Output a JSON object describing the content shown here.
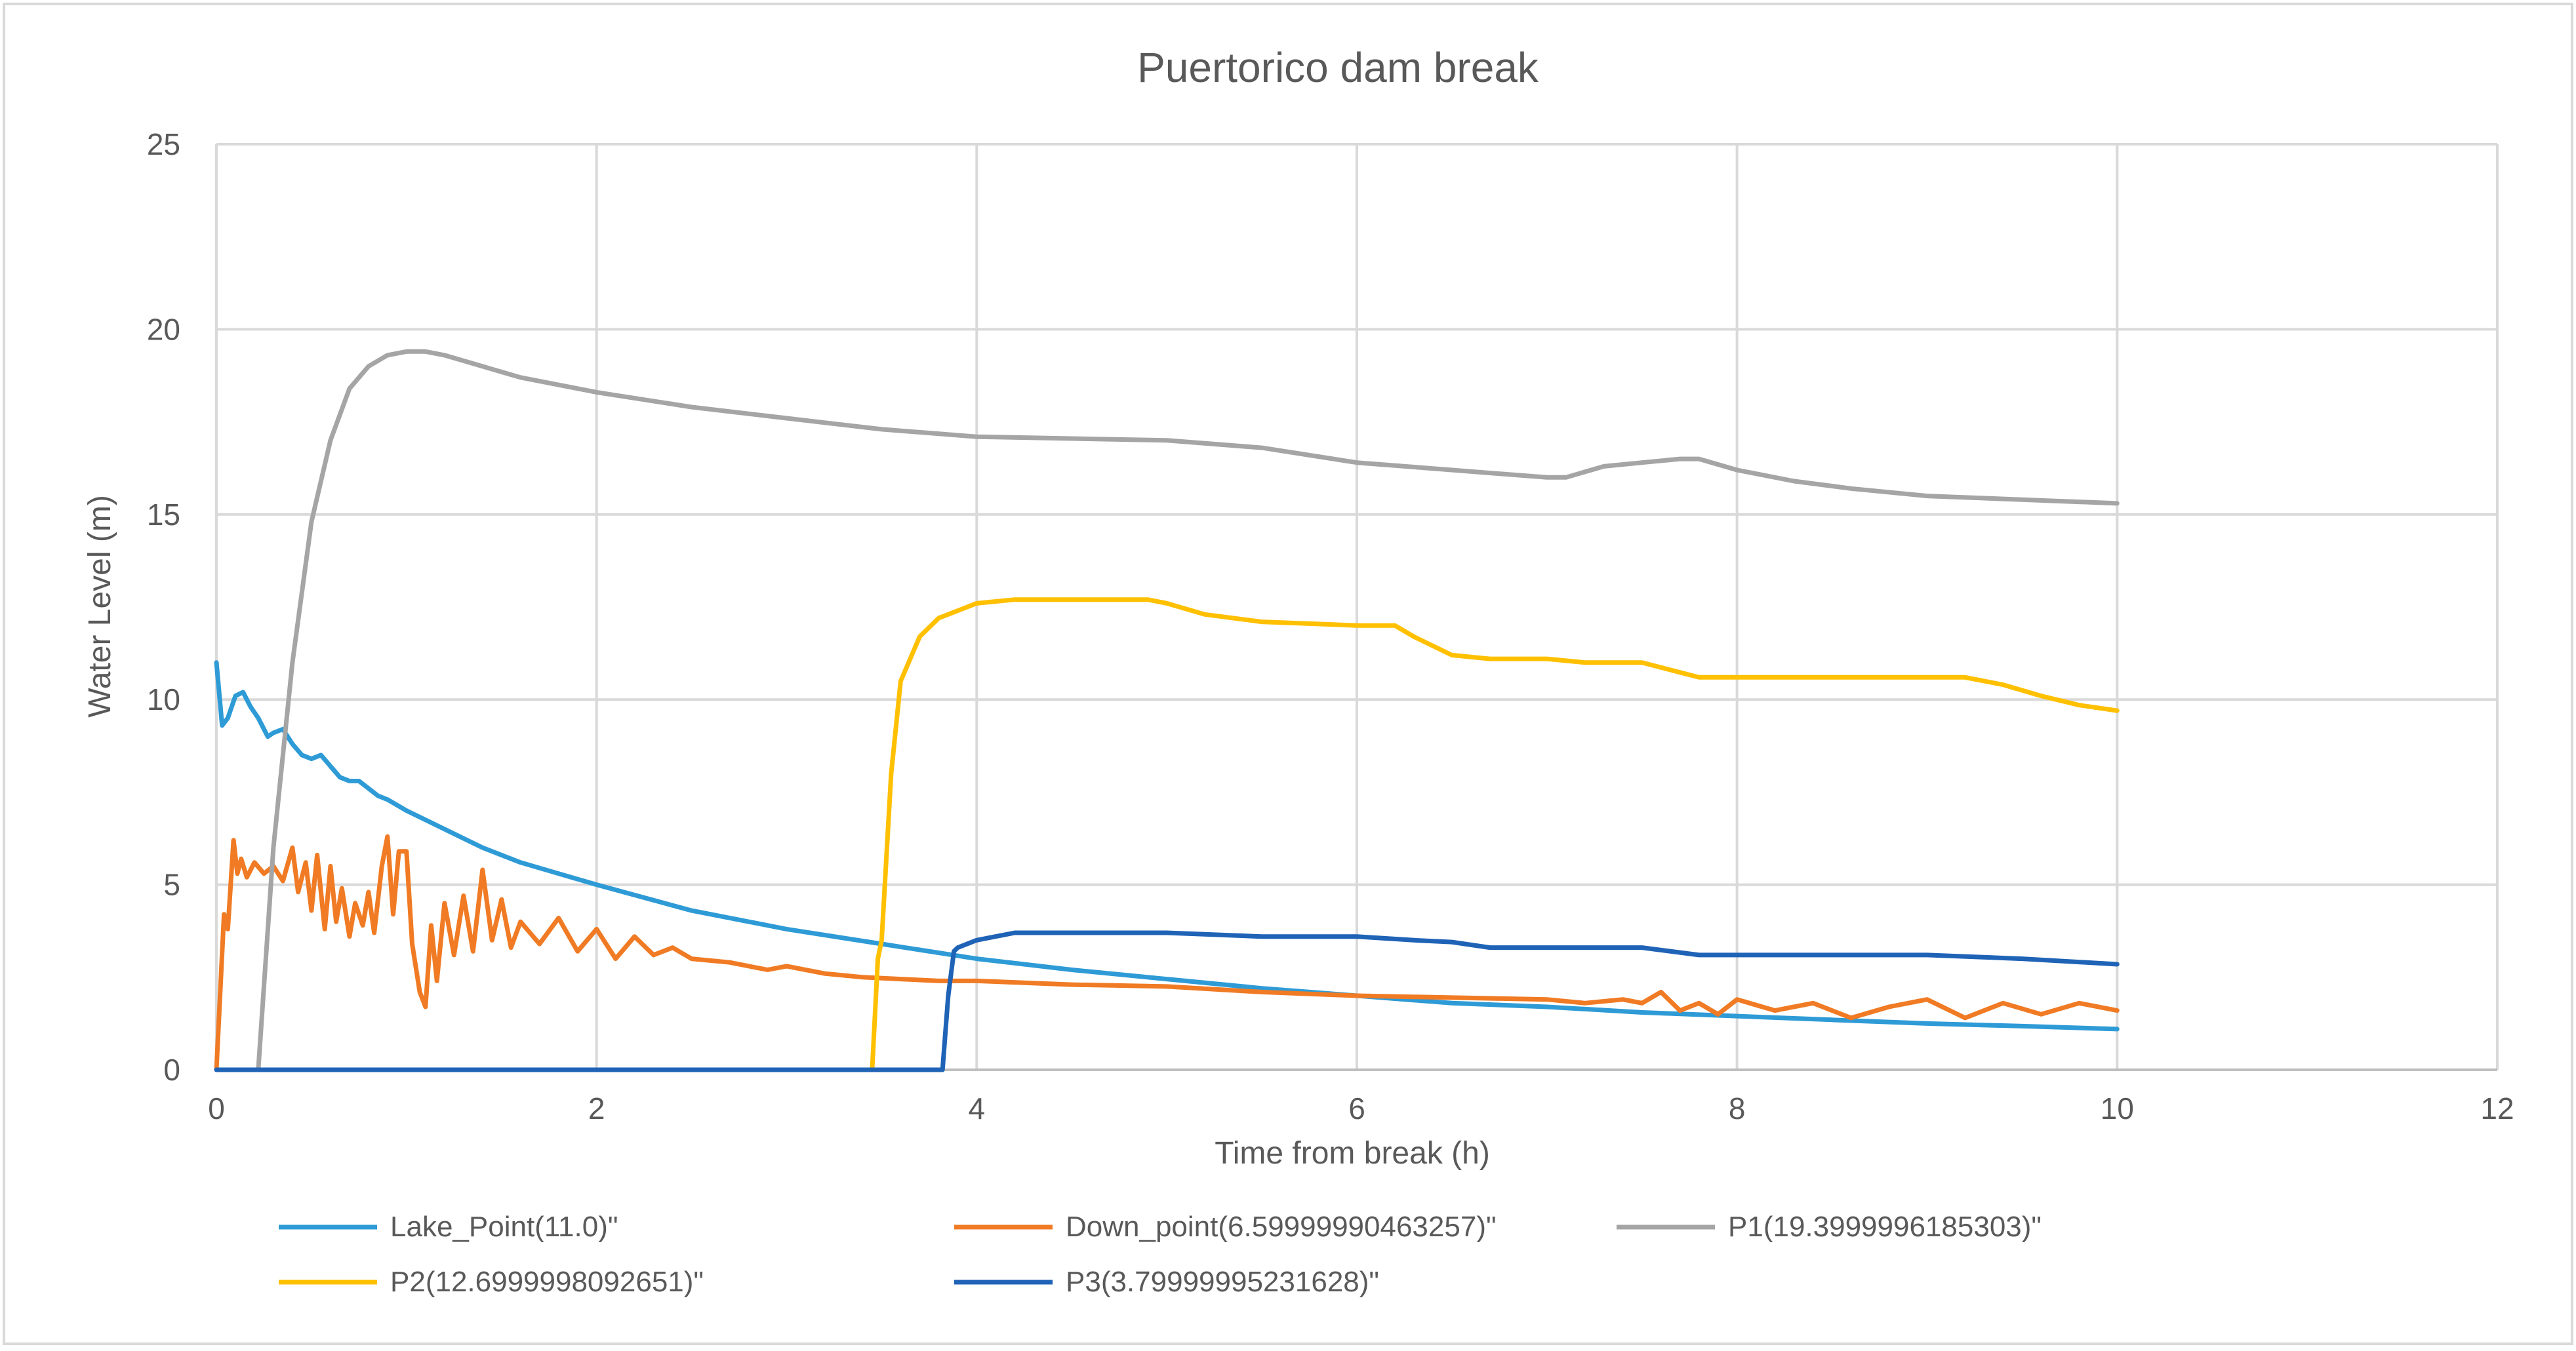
{
  "chart_data": {
    "type": "line",
    "title": "Puertorico dam break",
    "xlabel": "Time from break (h)",
    "ylabel": "Water Level (m)",
    "xlim": [
      0,
      12
    ],
    "ylim": [
      0,
      25
    ],
    "x_ticks": [
      "0",
      "2",
      "4",
      "6",
      "8",
      "10",
      "12"
    ],
    "y_ticks": [
      "0",
      "5",
      "10",
      "15",
      "20",
      "25"
    ],
    "grid": true,
    "legend_position": "bottom",
    "series": [
      {
        "name": "Lake_Point(11.0)\"",
        "color": "#2e9bd6",
        "x": [
          0,
          0.03,
          0.06,
          0.1,
          0.14,
          0.18,
          0.22,
          0.27,
          0.3,
          0.35,
          0.4,
          0.45,
          0.5,
          0.55,
          0.6,
          0.65,
          0.7,
          0.75,
          0.8,
          0.85,
          0.9,
          1.0,
          1.2,
          1.4,
          1.6,
          1.8,
          2.0,
          2.5,
          3.0,
          3.5,
          4.0,
          4.5,
          5.0,
          5.5,
          6.0,
          6.5,
          7.0,
          7.5,
          8.0,
          8.5,
          9.0,
          9.5,
          10.0
        ],
        "y": [
          11.0,
          9.3,
          9.5,
          10.1,
          10.2,
          9.8,
          9.5,
          9.0,
          9.1,
          9.2,
          8.8,
          8.5,
          8.4,
          8.5,
          8.2,
          7.9,
          7.8,
          7.8,
          7.6,
          7.4,
          7.3,
          7.0,
          6.5,
          6.0,
          5.6,
          5.3,
          5.0,
          4.3,
          3.8,
          3.4,
          3.0,
          2.7,
          2.45,
          2.2,
          2.0,
          1.8,
          1.7,
          1.55,
          1.45,
          1.35,
          1.25,
          1.18,
          1.1
        ]
      },
      {
        "name": "Down_point(6.59999990463257)\"",
        "color": "#f07b24",
        "x": [
          0,
          0.04,
          0.06,
          0.09,
          0.11,
          0.13,
          0.16,
          0.2,
          0.25,
          0.3,
          0.35,
          0.4,
          0.43,
          0.47,
          0.5,
          0.53,
          0.57,
          0.6,
          0.63,
          0.66,
          0.7,
          0.73,
          0.77,
          0.8,
          0.83,
          0.87,
          0.9,
          0.93,
          0.96,
          1.0,
          1.03,
          1.07,
          1.1,
          1.13,
          1.16,
          1.2,
          1.25,
          1.3,
          1.35,
          1.4,
          1.45,
          1.5,
          1.55,
          1.6,
          1.7,
          1.8,
          1.9,
          2.0,
          2.1,
          2.2,
          2.3,
          2.4,
          2.5,
          2.7,
          2.9,
          3.0,
          3.2,
          3.4,
          3.6,
          3.8,
          4.0,
          4.5,
          5.0,
          5.5,
          6.0,
          6.5,
          7.0,
          7.2,
          7.4,
          7.5,
          7.6,
          7.7,
          7.8,
          7.9,
          8.0,
          8.2,
          8.4,
          8.6,
          8.8,
          9.0,
          9.2,
          9.4,
          9.6,
          9.8,
          10.0
        ],
        "y": [
          0,
          4.2,
          3.8,
          6.2,
          5.3,
          5.7,
          5.2,
          5.6,
          5.3,
          5.5,
          5.1,
          6.0,
          4.8,
          5.6,
          4.3,
          5.8,
          3.8,
          5.5,
          4.0,
          4.9,
          3.6,
          4.5,
          3.9,
          4.8,
          3.7,
          5.5,
          6.3,
          4.2,
          5.9,
          5.9,
          3.4,
          2.1,
          1.7,
          3.9,
          2.4,
          4.5,
          3.1,
          4.7,
          3.2,
          5.4,
          3.5,
          4.6,
          3.3,
          4.0,
          3.4,
          4.1,
          3.2,
          3.8,
          3.0,
          3.6,
          3.1,
          3.3,
          3.0,
          2.9,
          2.7,
          2.8,
          2.6,
          2.5,
          2.45,
          2.4,
          2.4,
          2.3,
          2.25,
          2.1,
          2.0,
          1.95,
          1.9,
          1.8,
          1.9,
          1.8,
          2.1,
          1.6,
          1.8,
          1.5,
          1.9,
          1.6,
          1.8,
          1.4,
          1.7,
          1.9,
          1.4,
          1.8,
          1.5,
          1.8,
          1.6
        ]
      },
      {
        "name": "P1(19.3999996185303)\"",
        "color": "#a5a5a5",
        "x": [
          0.22,
          0.3,
          0.4,
          0.5,
          0.6,
          0.7,
          0.8,
          0.9,
          1.0,
          1.1,
          1.2,
          1.4,
          1.6,
          2.0,
          2.5,
          3.0,
          3.5,
          4.0,
          4.5,
          5.0,
          5.5,
          6.0,
          6.5,
          7.0,
          7.1,
          7.3,
          7.5,
          7.7,
          7.8,
          8.0,
          8.3,
          8.6,
          9.0,
          9.5,
          10.0
        ],
        "y": [
          0,
          6.0,
          11.0,
          14.8,
          17.0,
          18.4,
          19.0,
          19.3,
          19.4,
          19.4,
          19.3,
          19.0,
          18.7,
          18.3,
          17.9,
          17.6,
          17.3,
          17.1,
          17.05,
          17.0,
          16.8,
          16.4,
          16.2,
          16.0,
          16.0,
          16.3,
          16.4,
          16.5,
          16.5,
          16.2,
          15.9,
          15.7,
          15.5,
          15.4,
          15.3
        ]
      },
      {
        "name": "P2(12.6999998092651)\"",
        "color": "#ffc000",
        "x": [
          3.45,
          3.48,
          3.5,
          3.55,
          3.6,
          3.7,
          3.8,
          3.9,
          4.0,
          4.2,
          4.5,
          4.9,
          5.0,
          5.2,
          5.5,
          6.0,
          6.2,
          6.3,
          6.5,
          6.7,
          7.0,
          7.2,
          7.3,
          7.5,
          7.8,
          8.0,
          8.5,
          9.0,
          9.2,
          9.4,
          9.6,
          9.8,
          10.0
        ],
        "y": [
          0,
          3.0,
          3.5,
          8.0,
          10.5,
          11.7,
          12.2,
          12.4,
          12.6,
          12.7,
          12.7,
          12.7,
          12.6,
          12.3,
          12.1,
          12.0,
          12.0,
          11.7,
          11.2,
          11.1,
          11.1,
          11.0,
          11.0,
          11.0,
          10.6,
          10.6,
          10.6,
          10.6,
          10.6,
          10.4,
          10.1,
          9.85,
          9.7
        ]
      },
      {
        "name": "P3(3.79999995231628)\"",
        "color": "#1f63b7",
        "x": [
          0,
          3.82,
          3.85,
          3.88,
          3.9,
          4.0,
          4.2,
          4.5,
          5.0,
          5.5,
          6.0,
          6.3,
          6.5,
          6.7,
          7.0,
          7.5,
          7.8,
          8.0,
          8.5,
          9.0,
          9.5,
          10.0
        ],
        "y": [
          0,
          0,
          2.0,
          3.2,
          3.3,
          3.5,
          3.7,
          3.7,
          3.7,
          3.6,
          3.6,
          3.5,
          3.45,
          3.3,
          3.3,
          3.3,
          3.1,
          3.1,
          3.1,
          3.1,
          3.0,
          2.85
        ]
      }
    ]
  }
}
